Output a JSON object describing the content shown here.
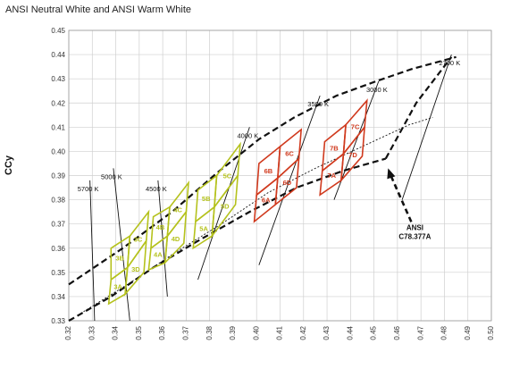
{
  "chart_data": {
    "type": "line",
    "title": "ANSI Neutral White and ANSI Warm White",
    "ylabel": "CCy",
    "xlabel": "",
    "xlim": [
      0.32,
      0.5
    ],
    "ylim": [
      0.33,
      0.45
    ],
    "x_ticks": [
      "0.32",
      "0.33",
      "0.34",
      "0.35",
      "0.36",
      "0.37",
      "0.38",
      "0.39",
      "0.40",
      "0.41",
      "0.42",
      "0.43",
      "0.44",
      "0.45",
      "0.46",
      "0.47",
      "0.48",
      "0.49",
      "0.50"
    ],
    "y_ticks": [
      "0.33",
      "0.34",
      "0.35",
      "0.36",
      "0.37",
      "0.38",
      "0.39",
      "0.40",
      "0.41",
      "0.42",
      "0.43",
      "0.44",
      "0.45"
    ],
    "grid": true,
    "colors": {
      "neutral": "#b5c21d",
      "warm": "#d03a1e",
      "outline": "#111111",
      "grid": "#cfcfcf"
    },
    "isotherms": [
      {
        "label": "5700 K",
        "points": [
          [
            0.329,
            0.388
          ],
          [
            0.331,
            0.33
          ]
        ]
      },
      {
        "label": "5000 K",
        "points": [
          [
            0.339,
            0.393
          ],
          [
            0.346,
            0.33
          ]
        ]
      },
      {
        "label": "4500 K",
        "points": [
          [
            0.358,
            0.388
          ],
          [
            0.362,
            0.34
          ]
        ]
      },
      {
        "label": "4000 K",
        "points": [
          [
            0.397,
            0.41
          ],
          [
            0.375,
            0.347
          ]
        ]
      },
      {
        "label": "3500 K",
        "points": [
          [
            0.427,
            0.423
          ],
          [
            0.401,
            0.353
          ]
        ]
      },
      {
        "label": "3000 K",
        "points": [
          [
            0.452,
            0.429
          ],
          [
            0.433,
            0.38
          ]
        ]
      },
      {
        "label": "2700 K",
        "points": [
          [
            0.483,
            0.44
          ],
          [
            0.462,
            0.38
          ]
        ]
      }
    ],
    "series": [
      {
        "name": "",
        "style": "dashed-black",
        "values": [
          [
            0.32,
            0.345
          ],
          [
            0.343,
            0.36
          ],
          [
            0.364,
            0.375
          ],
          [
            0.383,
            0.391
          ],
          [
            0.401,
            0.405
          ],
          [
            0.416,
            0.414
          ],
          [
            0.434,
            0.423
          ],
          [
            0.451,
            0.429
          ],
          [
            0.466,
            0.434
          ],
          [
            0.485,
            0.439
          ]
        ]
      },
      {
        "name": "",
        "style": "dashed-black",
        "values": [
          [
            0.32,
            0.33
          ],
          [
            0.338,
            0.34
          ],
          [
            0.356,
            0.352
          ],
          [
            0.375,
            0.363
          ],
          [
            0.397,
            0.375
          ],
          [
            0.417,
            0.385
          ],
          [
            0.437,
            0.392
          ],
          [
            0.455,
            0.397
          ]
        ]
      },
      {
        "name": "",
        "style": "dashed-black",
        "values": [
          [
            0.455,
            0.397
          ],
          [
            0.468,
            0.42
          ],
          [
            0.483,
            0.439
          ]
        ]
      },
      {
        "name": "",
        "style": "dotted-black",
        "values": [
          [
            0.325,
            0.333
          ],
          [
            0.345,
            0.345
          ],
          [
            0.365,
            0.358
          ],
          [
            0.385,
            0.37
          ],
          [
            0.405,
            0.383
          ],
          [
            0.425,
            0.393
          ],
          [
            0.445,
            0.402
          ],
          [
            0.465,
            0.411
          ],
          [
            0.475,
            0.414
          ]
        ]
      }
    ],
    "zones": [
      {
        "label": "3A",
        "group": "neutral",
        "corners": [
          [
            0.338,
            0.347
          ],
          [
            0.345,
            0.352
          ],
          [
            0.344,
            0.341
          ],
          [
            0.337,
            0.337
          ]
        ]
      },
      {
        "label": "3B",
        "group": "neutral",
        "corners": [
          [
            0.338,
            0.36
          ],
          [
            0.346,
            0.365
          ],
          [
            0.345,
            0.352
          ],
          [
            0.338,
            0.347
          ]
        ]
      },
      {
        "label": "3C",
        "group": "neutral",
        "corners": [
          [
            0.346,
            0.365
          ],
          [
            0.354,
            0.375
          ],
          [
            0.353,
            0.363
          ],
          [
            0.345,
            0.352
          ]
        ]
      },
      {
        "label": "3D",
        "group": "neutral",
        "corners": [
          [
            0.345,
            0.352
          ],
          [
            0.353,
            0.363
          ],
          [
            0.352,
            0.35
          ],
          [
            0.344,
            0.341
          ]
        ]
      },
      {
        "label": "4A",
        "group": "neutral",
        "corners": [
          [
            0.355,
            0.36
          ],
          [
            0.362,
            0.365
          ],
          [
            0.361,
            0.354
          ],
          [
            0.354,
            0.351
          ]
        ]
      },
      {
        "label": "4B",
        "group": "neutral",
        "corners": [
          [
            0.356,
            0.373
          ],
          [
            0.363,
            0.377
          ],
          [
            0.362,
            0.365
          ],
          [
            0.355,
            0.36
          ]
        ]
      },
      {
        "label": "4C",
        "group": "neutral",
        "corners": [
          [
            0.363,
            0.377
          ],
          [
            0.371,
            0.387
          ],
          [
            0.37,
            0.375
          ],
          [
            0.362,
            0.365
          ]
        ]
      },
      {
        "label": "4D",
        "group": "neutral",
        "corners": [
          [
            0.362,
            0.365
          ],
          [
            0.37,
            0.375
          ],
          [
            0.369,
            0.362
          ],
          [
            0.361,
            0.354
          ]
        ]
      },
      {
        "label": "5A",
        "group": "neutral",
        "corners": [
          [
            0.374,
            0.371
          ],
          [
            0.382,
            0.377
          ],
          [
            0.381,
            0.365
          ],
          [
            0.373,
            0.36
          ]
        ]
      },
      {
        "label": "5B",
        "group": "neutral",
        "corners": [
          [
            0.375,
            0.384
          ],
          [
            0.383,
            0.39
          ],
          [
            0.382,
            0.377
          ],
          [
            0.374,
            0.371
          ]
        ]
      },
      {
        "label": "5C",
        "group": "neutral",
        "corners": [
          [
            0.383,
            0.39
          ],
          [
            0.393,
            0.403
          ],
          [
            0.392,
            0.39
          ],
          [
            0.382,
            0.377
          ]
        ]
      },
      {
        "label": "5D",
        "group": "neutral",
        "corners": [
          [
            0.382,
            0.377
          ],
          [
            0.392,
            0.39
          ],
          [
            0.391,
            0.378
          ],
          [
            0.381,
            0.365
          ]
        ]
      },
      {
        "label": "6A",
        "group": "warm",
        "corners": [
          [
            0.4,
            0.382
          ],
          [
            0.409,
            0.389
          ],
          [
            0.408,
            0.378
          ],
          [
            0.399,
            0.371
          ]
        ]
      },
      {
        "label": "6B",
        "group": "warm",
        "corners": [
          [
            0.401,
            0.395
          ],
          [
            0.41,
            0.402
          ],
          [
            0.409,
            0.389
          ],
          [
            0.4,
            0.382
          ]
        ]
      },
      {
        "label": "6C",
        "group": "warm",
        "corners": [
          [
            0.41,
            0.402
          ],
          [
            0.419,
            0.409
          ],
          [
            0.418,
            0.397
          ],
          [
            0.409,
            0.389
          ]
        ]
      },
      {
        "label": "6D",
        "group": "warm",
        "corners": [
          [
            0.409,
            0.389
          ],
          [
            0.418,
            0.397
          ],
          [
            0.417,
            0.385
          ],
          [
            0.408,
            0.378
          ]
        ]
      },
      {
        "label": "7A",
        "group": "warm",
        "corners": [
          [
            0.428,
            0.392
          ],
          [
            0.437,
            0.399
          ],
          [
            0.436,
            0.388
          ],
          [
            0.427,
            0.382
          ]
        ]
      },
      {
        "label": "7B",
        "group": "warm",
        "corners": [
          [
            0.429,
            0.404
          ],
          [
            0.438,
            0.411
          ],
          [
            0.437,
            0.399
          ],
          [
            0.428,
            0.392
          ]
        ]
      },
      {
        "label": "7C",
        "group": "warm",
        "corners": [
          [
            0.438,
            0.411
          ],
          [
            0.447,
            0.421
          ],
          [
            0.446,
            0.41
          ],
          [
            0.437,
            0.399
          ]
        ]
      },
      {
        "label": "7D",
        "group": "warm",
        "corners": [
          [
            0.437,
            0.399
          ],
          [
            0.446,
            0.41
          ],
          [
            0.445,
            0.398
          ],
          [
            0.436,
            0.388
          ]
        ]
      }
    ],
    "annotation": {
      "lines": [
        "ANSI",
        "C78.377A"
      ],
      "arrow_to": [
        0.456,
        0.393
      ]
    }
  }
}
